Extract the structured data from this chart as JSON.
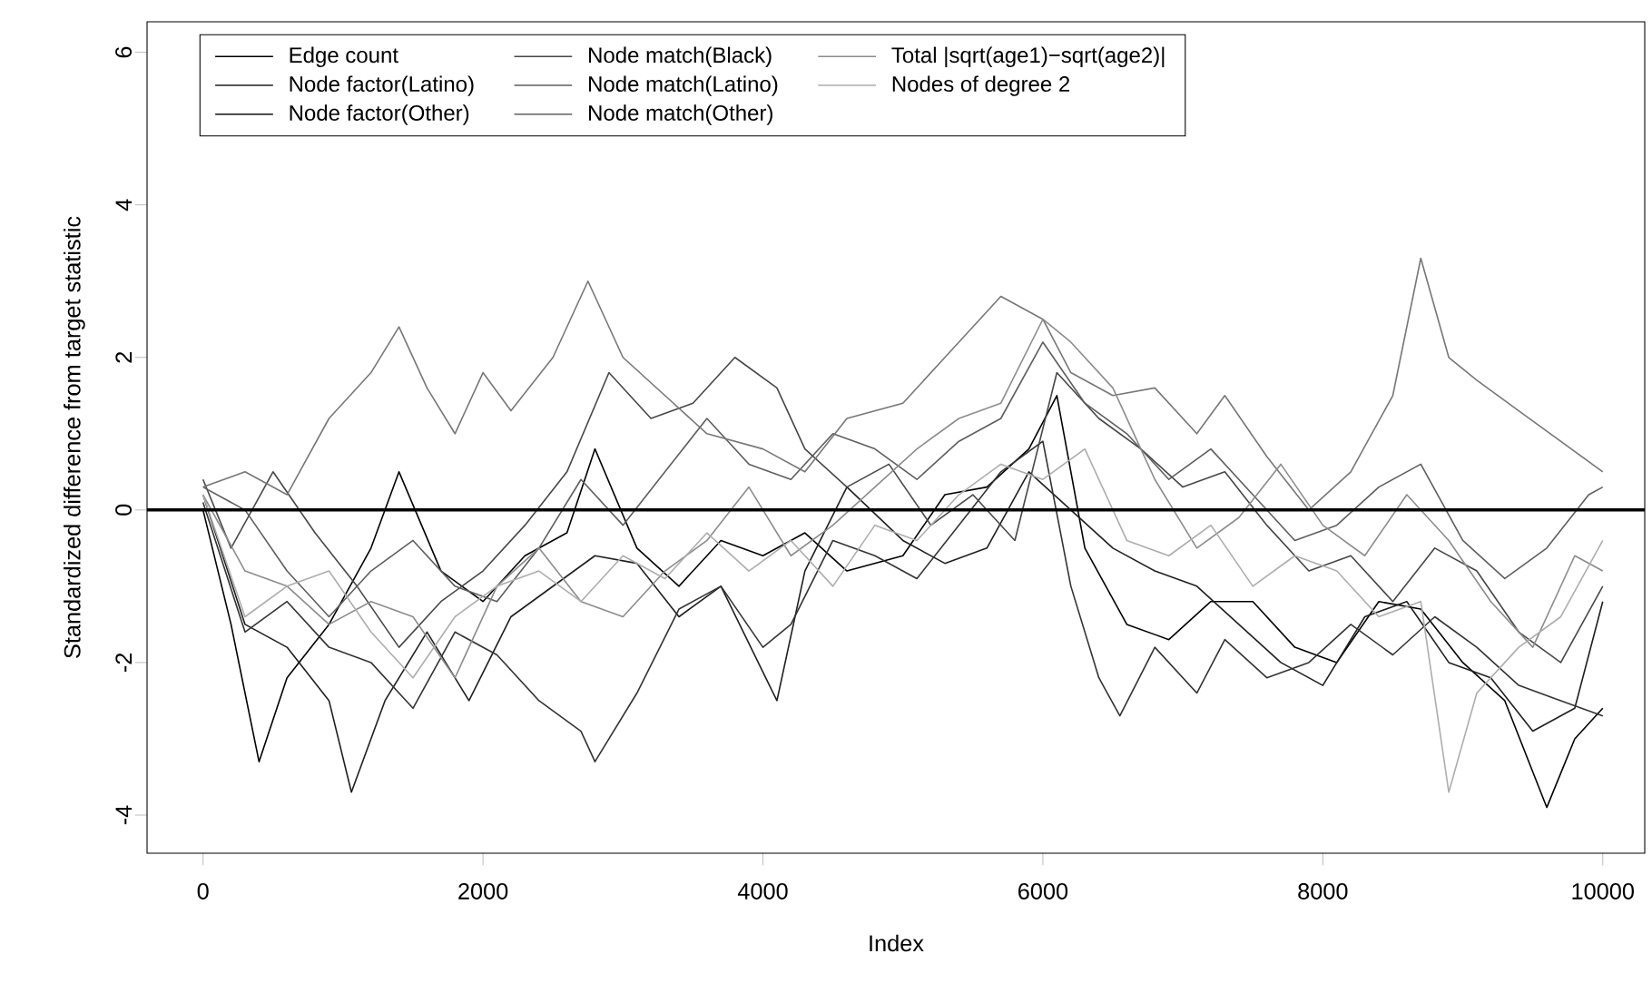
{
  "chart_data": {
    "type": "line",
    "xlabel": "Index",
    "ylabel": "Standardized difference from target statistic",
    "xlim": [
      -400,
      10300
    ],
    "ylim": [
      -4.5,
      6.4
    ],
    "xticks": [
      0,
      2000,
      4000,
      6000,
      8000,
      10000
    ],
    "yticks": [
      -4,
      -2,
      0,
      2,
      4,
      6
    ],
    "legend": "top left",
    "grid": false,
    "ref_lines": [
      {
        "axis": "y",
        "value": 0,
        "color": "#000000"
      }
    ],
    "series": [
      {
        "name": "Edge count",
        "color": "#000000",
        "x": [
          0,
          200,
          400,
          600,
          900,
          1200,
          1400,
          1700,
          2000,
          2300,
          2600,
          2800,
          3100,
          3400,
          3700,
          4000,
          4300,
          4600,
          5000,
          5300,
          5600,
          5900,
          6100,
          6300,
          6600,
          6900,
          7200,
          7500,
          7800,
          8100,
          8400,
          8700,
          9000,
          9300,
          9600,
          9800,
          10000
        ],
        "values": [
          0,
          -1.5,
          -3.3,
          -2.2,
          -1.5,
          -0.5,
          0.5,
          -0.8,
          -1.2,
          -0.6,
          -0.3,
          0.8,
          -0.5,
          -1.0,
          -0.4,
          -0.6,
          -0.3,
          -0.8,
          -0.6,
          0.2,
          0.3,
          0.8,
          1.5,
          -0.5,
          -1.5,
          -1.7,
          -1.2,
          -1.2,
          -1.8,
          -2.0,
          -1.2,
          -1.3,
          -2.0,
          -2.5,
          -3.9,
          -3.0,
          -2.6
        ]
      },
      {
        "name": "Node factor(Latino)",
        "color": "#1f1f1f",
        "x": [
          0,
          300,
          600,
          900,
          1060,
          1300,
          1600,
          1900,
          2200,
          2500,
          2800,
          3100,
          3400,
          3700,
          4100,
          4300,
          4600,
          5000,
          5300,
          5600,
          5900,
          6200,
          6500,
          6800,
          7100,
          7400,
          7700,
          8000,
          8300,
          8600,
          8900,
          9200,
          9500,
          9800,
          10000
        ],
        "values": [
          0.2,
          -1.5,
          -1.8,
          -2.5,
          -3.7,
          -2.5,
          -1.6,
          -2.5,
          -1.4,
          -1.0,
          -0.6,
          -0.7,
          -1.4,
          -1.0,
          -2.5,
          -0.8,
          0.3,
          -0.4,
          -0.7,
          -0.5,
          0.5,
          0.0,
          -0.5,
          -0.8,
          -1.0,
          -1.5,
          -2.0,
          -2.3,
          -1.4,
          -1.2,
          -2.0,
          -2.2,
          -2.9,
          -2.6,
          -1.2
        ]
      },
      {
        "name": "Node factor(Other)",
        "color": "#333333",
        "x": [
          0,
          300,
          600,
          900,
          1200,
          1500,
          1800,
          2100,
          2400,
          2700,
          2800,
          3100,
          3400,
          3700,
          4000,
          4200,
          4500,
          4800,
          5100,
          5400,
          5700,
          6000,
          6200,
          6400,
          6550,
          6800,
          7100,
          7300,
          7600,
          7900,
          8200,
          8500,
          8800,
          9100,
          9400,
          9700,
          10000
        ],
        "values": [
          0.1,
          -1.6,
          -1.2,
          -1.8,
          -2.0,
          -2.6,
          -1.6,
          -1.9,
          -2.5,
          -2.9,
          -3.3,
          -2.4,
          -1.3,
          -1.0,
          -1.8,
          -1.5,
          -0.4,
          -0.6,
          -0.9,
          -0.2,
          0.5,
          0.9,
          -1.0,
          -2.2,
          -2.7,
          -1.8,
          -2.4,
          -1.7,
          -2.2,
          -2.0,
          -1.5,
          -1.9,
          -1.4,
          -1.8,
          -2.3,
          -2.5,
          -2.7
        ]
      },
      {
        "name": "Node match(Black)",
        "color": "#474747",
        "x": [
          0,
          200,
          500,
          800,
          1100,
          1400,
          1700,
          2000,
          2300,
          2600,
          2900,
          3200,
          3500,
          3800,
          4100,
          4300,
          4600,
          4900,
          5200,
          5500,
          5800,
          6100,
          6400,
          6700,
          7000,
          7300,
          7600,
          7900,
          8200,
          8500,
          8800,
          9100,
          9400,
          9700,
          10000
        ],
        "values": [
          0.4,
          -0.5,
          0.5,
          -0.3,
          -1.0,
          -1.8,
          -1.2,
          -0.8,
          -0.2,
          0.5,
          1.8,
          1.2,
          1.4,
          2.0,
          1.6,
          0.8,
          0.3,
          0.6,
          -0.2,
          0.2,
          -0.4,
          1.8,
          1.2,
          0.8,
          0.3,
          0.5,
          -0.2,
          -0.8,
          -0.6,
          -1.2,
          -0.5,
          -0.8,
          -1.6,
          -2.0,
          -1.0
        ]
      },
      {
        "name": "Node match(Latino)",
        "color": "#5e5e5e",
        "x": [
          0,
          300,
          600,
          900,
          1200,
          1500,
          1800,
          2100,
          2400,
          2700,
          3000,
          3300,
          3600,
          3900,
          4200,
          4500,
          4800,
          5100,
          5400,
          5700,
          6000,
          6300,
          6600,
          6900,
          7200,
          7500,
          7800,
          8100,
          8400,
          8700,
          9000,
          9300,
          9600,
          9900,
          10000
        ],
        "values": [
          0.3,
          0.0,
          -0.8,
          -1.4,
          -0.8,
          -0.4,
          -1.0,
          -1.2,
          -0.5,
          0.4,
          -0.2,
          0.5,
          1.2,
          0.6,
          0.4,
          1.0,
          0.8,
          0.4,
          0.9,
          1.2,
          2.2,
          1.4,
          1.0,
          0.4,
          0.8,
          0.2,
          -0.4,
          -0.2,
          0.3,
          0.6,
          -0.4,
          -0.9,
          -0.5,
          0.2,
          0.3
        ]
      },
      {
        "name": "Node match(Other)",
        "color": "#777777",
        "x": [
          0,
          300,
          600,
          900,
          1200,
          1400,
          1600,
          1800,
          2000,
          2200,
          2500,
          2750,
          3000,
          3300,
          3600,
          4000,
          4300,
          4600,
          5000,
          5300,
          5700,
          6000,
          6200,
          6500,
          6800,
          7100,
          7300,
          7600,
          7900,
          8200,
          8500,
          8700,
          8900,
          9100,
          9400,
          9700,
          10000
        ],
        "values": [
          0.3,
          0.5,
          0.2,
          1.2,
          1.8,
          2.4,
          1.6,
          1.0,
          1.8,
          1.3,
          2.0,
          3.0,
          2.0,
          1.5,
          1.0,
          0.8,
          0.5,
          1.2,
          1.4,
          2.0,
          2.8,
          2.5,
          1.8,
          1.5,
          1.6,
          1.0,
          1.5,
          0.7,
          0.0,
          0.5,
          1.5,
          3.3,
          2.0,
          1.7,
          1.3,
          0.9,
          0.5
        ]
      },
      {
        "name": "Total |sqrt(age1)−sqrt(age2)|",
        "color": "#8c8c8c",
        "x": [
          0,
          300,
          600,
          900,
          1200,
          1500,
          1800,
          2100,
          2400,
          2700,
          3000,
          3300,
          3600,
          3900,
          4200,
          4500,
          4800,
          5100,
          5400,
          5700,
          6000,
          6200,
          6500,
          6800,
          7100,
          7400,
          7700,
          8000,
          8300,
          8600,
          8900,
          9200,
          9500,
          9800,
          10000
        ],
        "values": [
          0.2,
          -0.8,
          -1.0,
          -1.5,
          -1.2,
          -1.4,
          -2.2,
          -1.0,
          -0.5,
          -1.2,
          -1.4,
          -0.8,
          -0.4,
          0.3,
          -0.6,
          -0.2,
          0.3,
          0.8,
          1.2,
          1.4,
          2.5,
          2.2,
          1.6,
          0.4,
          -0.5,
          -0.1,
          0.6,
          -0.2,
          -0.6,
          0.2,
          -0.4,
          -1.2,
          -1.8,
          -0.6,
          -0.8
        ]
      },
      {
        "name": "Nodes of degree 2",
        "color": "#adadad",
        "x": [
          0,
          300,
          600,
          900,
          1200,
          1500,
          1800,
          2100,
          2400,
          2700,
          3000,
          3300,
          3600,
          3900,
          4200,
          4500,
          4800,
          5100,
          5400,
          5700,
          6000,
          6300,
          6600,
          6900,
          7200,
          7500,
          7800,
          8100,
          8400,
          8700,
          8900,
          9100,
          9400,
          9700,
          10000
        ],
        "values": [
          0.2,
          -1.4,
          -1.0,
          -0.8,
          -1.6,
          -2.2,
          -1.4,
          -1.0,
          -0.8,
          -1.2,
          -0.6,
          -0.9,
          -0.3,
          -0.8,
          -0.4,
          -1.0,
          -0.2,
          -0.4,
          0.2,
          0.6,
          0.4,
          0.8,
          -0.4,
          -0.6,
          -0.2,
          -1.0,
          -0.6,
          -0.8,
          -1.4,
          -1.2,
          -3.7,
          -2.4,
          -1.8,
          -1.4,
          -0.4
        ]
      }
    ]
  }
}
